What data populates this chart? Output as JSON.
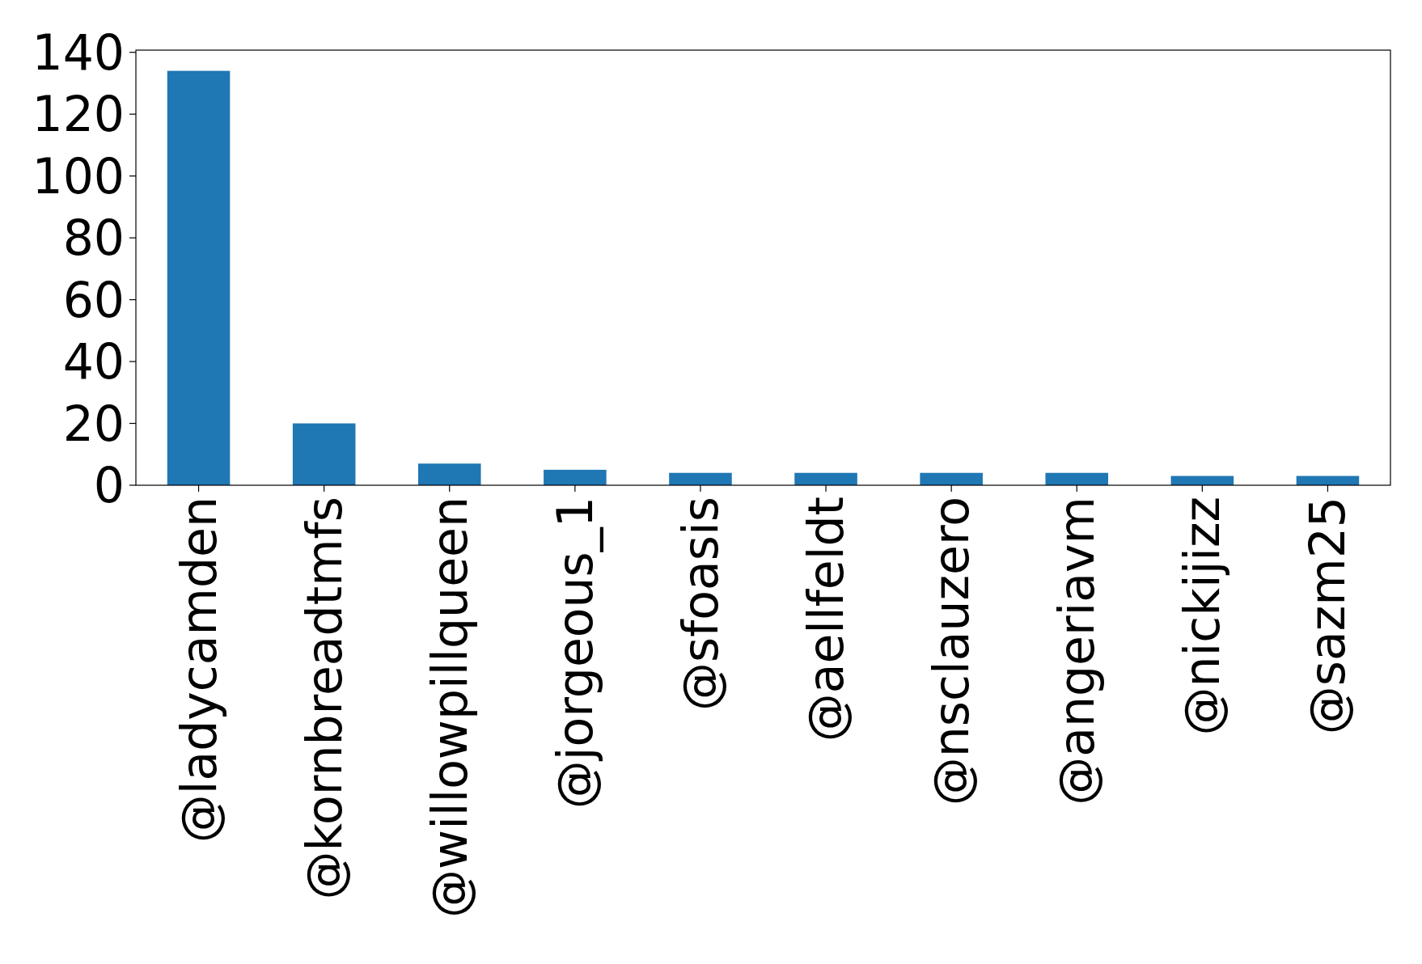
{
  "chart_data": {
    "type": "bar",
    "categories": [
      "@ladycamden",
      "@kornbreadtmfs",
      "@willowpillqueen",
      "@jorgeous_1",
      "@sfoasis",
      "@aellfeldt",
      "@nsclauzero",
      "@angeriavm",
      "@nickijizz",
      "@sazm25"
    ],
    "values": [
      134,
      20,
      7,
      5,
      4,
      4,
      4,
      4,
      3,
      3
    ],
    "color": "#1f77b4",
    "ylim": [
      0,
      140.7
    ],
    "yticks": [
      0,
      20,
      40,
      60,
      80,
      100,
      120,
      140
    ],
    "grid": false
  }
}
